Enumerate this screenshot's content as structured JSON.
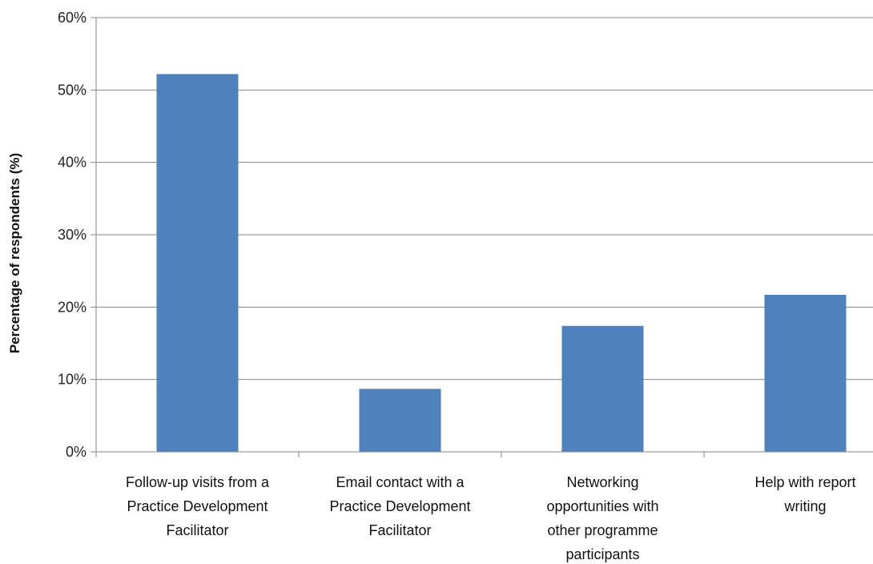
{
  "chart_data": {
    "type": "bar",
    "title": "",
    "xlabel": "",
    "ylabel": "Percentage of respondents (%)",
    "ylim": [
      0,
      60
    ],
    "yticks": [
      0,
      10,
      20,
      30,
      40,
      50,
      60
    ],
    "ytick_labels": [
      "0%",
      "10%",
      "20%",
      "30%",
      "40%",
      "50%",
      "60%"
    ],
    "grid": true,
    "legend": "none",
    "categories": [
      [
        "Follow-up visits from a",
        "Practice Development",
        "Facilitator"
      ],
      [
        "Email contact with a",
        "Practice Development",
        "Facilitator"
      ],
      [
        "Networking",
        "opportunities with",
        "other programme",
        "participants"
      ],
      [
        "Help with report",
        "writing"
      ]
    ],
    "values": [
      52.2,
      8.7,
      17.4,
      21.7
    ],
    "colors": {
      "bar": "#4F81BD",
      "grid": "#868686",
      "axis": "#868686"
    }
  }
}
